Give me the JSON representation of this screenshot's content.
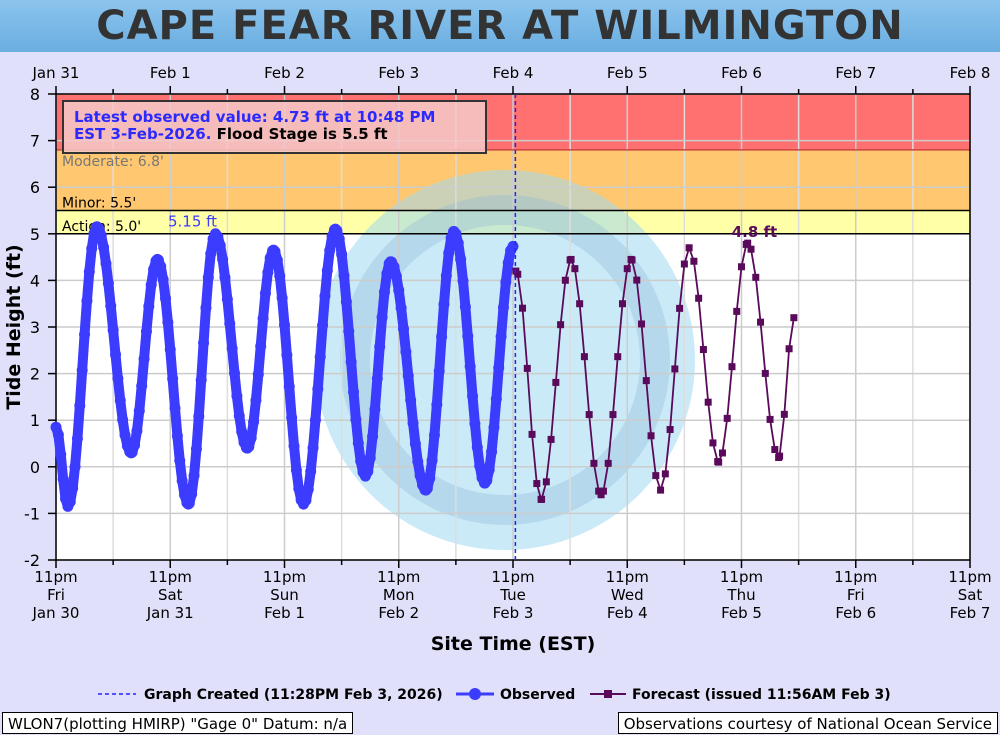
{
  "title": "CAPE FEAR RIVER AT WILMINGTON",
  "chart_data": {
    "type": "line",
    "title": "CAPE FEAR RIVER AT WILMINGTON",
    "xlabel": "Site Time (EST)",
    "ylabel": "Tide Height (ft)",
    "ylim": [
      -2,
      8
    ],
    "yticks": [
      -2,
      -1,
      0,
      1,
      2,
      3,
      4,
      5,
      6,
      7,
      8
    ],
    "x_units": "hours since 11pm Jan 30",
    "xlim": [
      0,
      192
    ],
    "top_ticks": [
      "Jan 31",
      "Feb  1",
      "Feb  2",
      "Feb  3",
      "Feb  4",
      "Feb  5",
      "Feb  6",
      "Feb  7",
      "Feb  8"
    ],
    "bottom_ticks": [
      [
        "11pm",
        "Fri",
        "Jan 30"
      ],
      [
        "11pm",
        "Sat",
        "Jan 31"
      ],
      [
        "11pm",
        "Sun",
        "Feb 1"
      ],
      [
        "11pm",
        "Mon",
        "Feb 2"
      ],
      [
        "11pm",
        "Tue",
        "Feb 3"
      ],
      [
        "11pm",
        "Wed",
        "Feb 4"
      ],
      [
        "11pm",
        "Thu",
        "Feb 5"
      ],
      [
        "11pm",
        "Fri",
        "Feb 6"
      ],
      [
        "11pm",
        "Sat",
        "Feb 7"
      ]
    ],
    "grid": true,
    "flood_categories": [
      {
        "name": "Action",
        "label": "Action: 5.0'",
        "value": 5.0,
        "color": "#ffffa8"
      },
      {
        "name": "Minor",
        "label": "Minor: 5.5'",
        "value": 5.5,
        "color": "#ffc870"
      },
      {
        "name": "Moderate",
        "label": "Moderate: 6.8'",
        "value": 6.8,
        "color": "#ff7070"
      }
    ],
    "series": [
      {
        "name": "Observed",
        "color": "#3c3cff",
        "interpolation": "cosine between extrema",
        "sample_hours": 0.5,
        "extrema": [
          [
            0,
            0.85
          ],
          [
            2.5,
            -0.85
          ],
          [
            8.6,
            5.15
          ],
          [
            15.8,
            0.3
          ],
          [
            21.3,
            4.45
          ],
          [
            27.8,
            -0.8
          ],
          [
            33.5,
            5.0
          ],
          [
            40.2,
            0.4
          ],
          [
            45.7,
            4.65
          ],
          [
            52,
            -0.8
          ],
          [
            58.7,
            5.1
          ],
          [
            65,
            -0.2
          ],
          [
            70.3,
            4.4
          ],
          [
            77.7,
            -0.5
          ],
          [
            83.6,
            5.05
          ],
          [
            90.1,
            -0.35
          ],
          [
            96,
            4.73
          ]
        ]
      },
      {
        "name": "Forecast (issued 11:56AM Feb 3)",
        "color": "#5a0a5a",
        "interpolation": "cosine between extrema",
        "sample_hours": 1,
        "extrema": [
          [
            96.6,
            4.2
          ],
          [
            101.9,
            -0.7
          ],
          [
            108.2,
            4.45
          ],
          [
            114.5,
            -0.6
          ],
          [
            120.8,
            4.45
          ],
          [
            127,
            -0.5
          ],
          [
            133,
            4.7
          ],
          [
            139.2,
            0.1
          ],
          [
            145.3,
            4.8
          ],
          [
            151.8,
            0.2
          ],
          [
            155,
            3.2
          ]
        ]
      }
    ],
    "annotations": {
      "obs_peak": "5.15 ft",
      "fcst_peak": "4.8 ft",
      "latest_line1": "Latest observed value: 4.73 ft at 10:48 PM",
      "latest_line2a": "EST 3-Feb-2026.",
      "latest_line2b": " Flood Stage is 5.5 ft",
      "graph_created_hour": 96.5
    },
    "legend": {
      "created": "Graph Created (11:28PM Feb 3, 2026)",
      "observed": "Observed",
      "forecast": "Forecast (issued 11:56AM Feb 3)"
    }
  },
  "footer": {
    "left": "WLON7(plotting HMIRP) \"Gage 0\" Datum: n/a",
    "right": "Observations courtesy of National Ocean Service"
  }
}
